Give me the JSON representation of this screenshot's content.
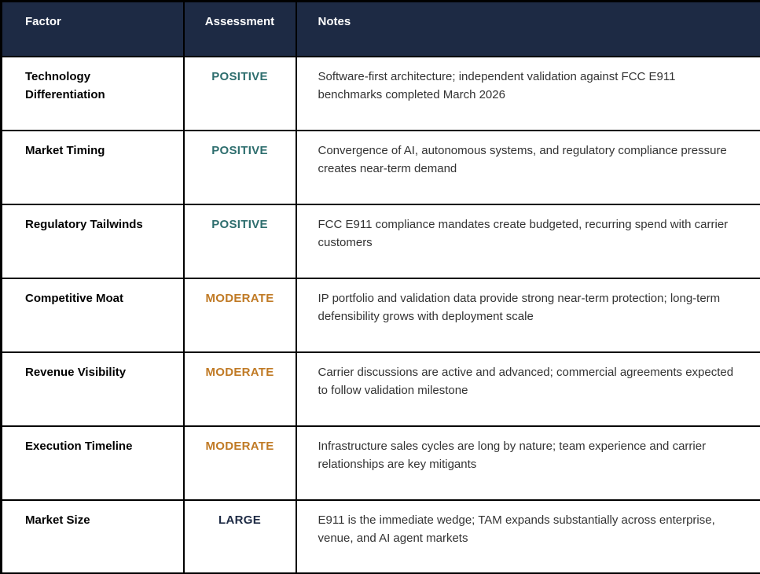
{
  "colors": {
    "header_bg": "#1d2a44",
    "border": "#000000",
    "positive": "#2e6e6e",
    "moderate": "#c07a25",
    "large": "#1d2a44",
    "notes_text": "#333333"
  },
  "table": {
    "headers": [
      "Factor",
      "Assessment",
      "Notes"
    ],
    "rows": [
      {
        "factor": "Technology Differentiation",
        "assessment": "POSITIVE",
        "tone": "positive",
        "notes": "Software-first architecture; independent validation against FCC E911 benchmarks completed March 2026"
      },
      {
        "factor": "Market Timing",
        "assessment": "POSITIVE",
        "tone": "positive",
        "notes": "Convergence of AI, autonomous systems, and regulatory compliance pressure creates near-term demand"
      },
      {
        "factor": "Regulatory Tailwinds",
        "assessment": "POSITIVE",
        "tone": "positive",
        "notes": "FCC E911 compliance mandates create budgeted, recurring spend with carrier customers"
      },
      {
        "factor": "Competitive Moat",
        "assessment": "MODERATE",
        "tone": "moderate",
        "notes": "IP portfolio and validation data provide strong near-term protection; long-term defensibility grows with deployment scale"
      },
      {
        "factor": "Revenue Visibility",
        "assessment": "MODERATE",
        "tone": "moderate",
        "notes": "Carrier discussions are active and advanced; commercial agreements expected to follow validation milestone"
      },
      {
        "factor": "Execution Timeline",
        "assessment": "MODERATE",
        "tone": "moderate",
        "notes": "Infrastructure sales cycles are long by nature; team experience and carrier relationships are key mitigants"
      },
      {
        "factor": "Market Size",
        "assessment": "LARGE",
        "tone": "large",
        "notes": "E911 is the immediate wedge; TAM expands substantially across enterprise, venue, and AI agent markets"
      }
    ]
  }
}
